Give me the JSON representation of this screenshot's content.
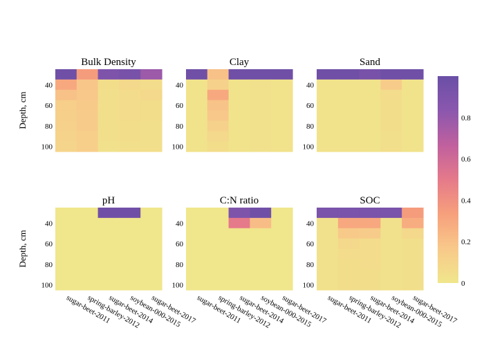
{
  "chart_data": {
    "type": "heatmap",
    "shared": {
      "ylabel": "Depth, cm",
      "yticks": [
        40,
        60,
        80,
        100
      ],
      "categories": [
        "sugar-beet-2011",
        "spring-barley-2012",
        "sugar-beet-2014",
        "soybean-000-2015",
        "sugar-beet-2017"
      ],
      "depth_rows": [
        30,
        40,
        50,
        60,
        70,
        80,
        90,
        100
      ],
      "colorbar": {
        "ticks": [
          "0",
          "0.2",
          "0.4",
          "0.6",
          "0.8"
        ],
        "range": [
          0,
          1
        ],
        "colors": [
          "#f0e68c",
          "#f8c98a",
          "#f7a07c",
          "#e57a8a",
          "#c0609e",
          "#8b57ae",
          "#6a4fa6"
        ]
      }
    },
    "panels": [
      {
        "title": "Bulk Density",
        "values": [
          [
            0.97,
            0.35,
            0.9,
            0.93,
            0.78
          ],
          [
            0.3,
            0.18,
            0.05,
            0.08,
            0.06
          ],
          [
            0.2,
            0.17,
            0.04,
            0.06,
            0.08
          ],
          [
            0.14,
            0.16,
            0.04,
            0.06,
            0.05
          ],
          [
            0.13,
            0.15,
            0.04,
            0.06,
            0.05
          ],
          [
            0.12,
            0.15,
            0.04,
            0.05,
            0.04
          ],
          [
            0.11,
            0.14,
            0.04,
            0.05,
            0.04
          ],
          [
            0.1,
            0.14,
            0.03,
            0.04,
            0.04
          ]
        ]
      },
      {
        "title": "Clay",
        "values": [
          [
            0.97,
            0.2,
            0.97,
            0.97,
            0.97
          ],
          [
            0.02,
            0.12,
            0.02,
            0.03,
            0.02
          ],
          [
            0.02,
            0.3,
            0.02,
            0.03,
            0.02
          ],
          [
            0.02,
            0.19,
            0.02,
            0.03,
            0.02
          ],
          [
            0.02,
            0.17,
            0.02,
            0.03,
            0.02
          ],
          [
            0.02,
            0.12,
            0.02,
            0.03,
            0.02
          ],
          [
            0.02,
            0.08,
            0.02,
            0.03,
            0.02
          ],
          [
            0.02,
            0.05,
            0.02,
            0.03,
            0.02
          ]
        ]
      },
      {
        "title": "Sand",
        "values": [
          [
            0.97,
            0.97,
            0.93,
            0.97,
            0.97
          ],
          [
            0.02,
            0.02,
            0.02,
            0.15,
            0.02
          ],
          [
            0.02,
            0.02,
            0.02,
            0.06,
            0.02
          ],
          [
            0.02,
            0.02,
            0.02,
            0.05,
            0.02
          ],
          [
            0.02,
            0.02,
            0.02,
            0.05,
            0.02
          ],
          [
            0.02,
            0.02,
            0.02,
            0.05,
            0.02
          ],
          [
            0.02,
            0.02,
            0.02,
            0.04,
            0.02
          ],
          [
            0.02,
            0.02,
            0.02,
            0.04,
            0.02
          ]
        ]
      },
      {
        "title": "pH",
        "values": [
          [
            0.0,
            0.0,
            0.97,
            0.97,
            0.0
          ],
          [
            0.0,
            0.0,
            0.0,
            0.0,
            0.0
          ],
          [
            0.0,
            0.0,
            0.0,
            0.0,
            0.0
          ],
          [
            0.0,
            0.0,
            0.0,
            0.0,
            0.0
          ],
          [
            0.0,
            0.0,
            0.0,
            0.0,
            0.0
          ],
          [
            0.0,
            0.0,
            0.0,
            0.0,
            0.0
          ],
          [
            0.0,
            0.0,
            0.0,
            0.0,
            0.0
          ],
          [
            0.0,
            0.0,
            0.0,
            0.0,
            0.0
          ]
        ]
      },
      {
        "title": "C:N ratio",
        "values": [
          [
            0.0,
            0.0,
            0.9,
            0.97,
            0.0
          ],
          [
            0.0,
            0.0,
            0.5,
            0.22,
            0.0
          ],
          [
            0.0,
            0.0,
            0.0,
            0.0,
            0.0
          ],
          [
            0.0,
            0.0,
            0.0,
            0.0,
            0.0
          ],
          [
            0.0,
            0.0,
            0.0,
            0.0,
            0.0
          ],
          [
            0.0,
            0.0,
            0.0,
            0.0,
            0.0
          ],
          [
            0.0,
            0.0,
            0.0,
            0.0,
            0.0
          ],
          [
            0.0,
            0.0,
            0.0,
            0.0,
            0.0
          ]
        ]
      },
      {
        "title": "SOC",
        "values": [
          [
            0.92,
            0.92,
            0.92,
            0.92,
            0.35
          ],
          [
            0.03,
            0.3,
            0.3,
            0.03,
            0.28
          ],
          [
            0.03,
            0.16,
            0.15,
            0.03,
            0.08
          ],
          [
            0.03,
            0.08,
            0.06,
            0.03,
            0.04
          ],
          [
            0.03,
            0.06,
            0.06,
            0.03,
            0.04
          ],
          [
            0.03,
            0.05,
            0.06,
            0.03,
            0.04
          ],
          [
            0.03,
            0.05,
            0.05,
            0.03,
            0.04
          ],
          [
            0.03,
            0.05,
            0.05,
            0.03,
            0.04
          ]
        ]
      }
    ]
  }
}
